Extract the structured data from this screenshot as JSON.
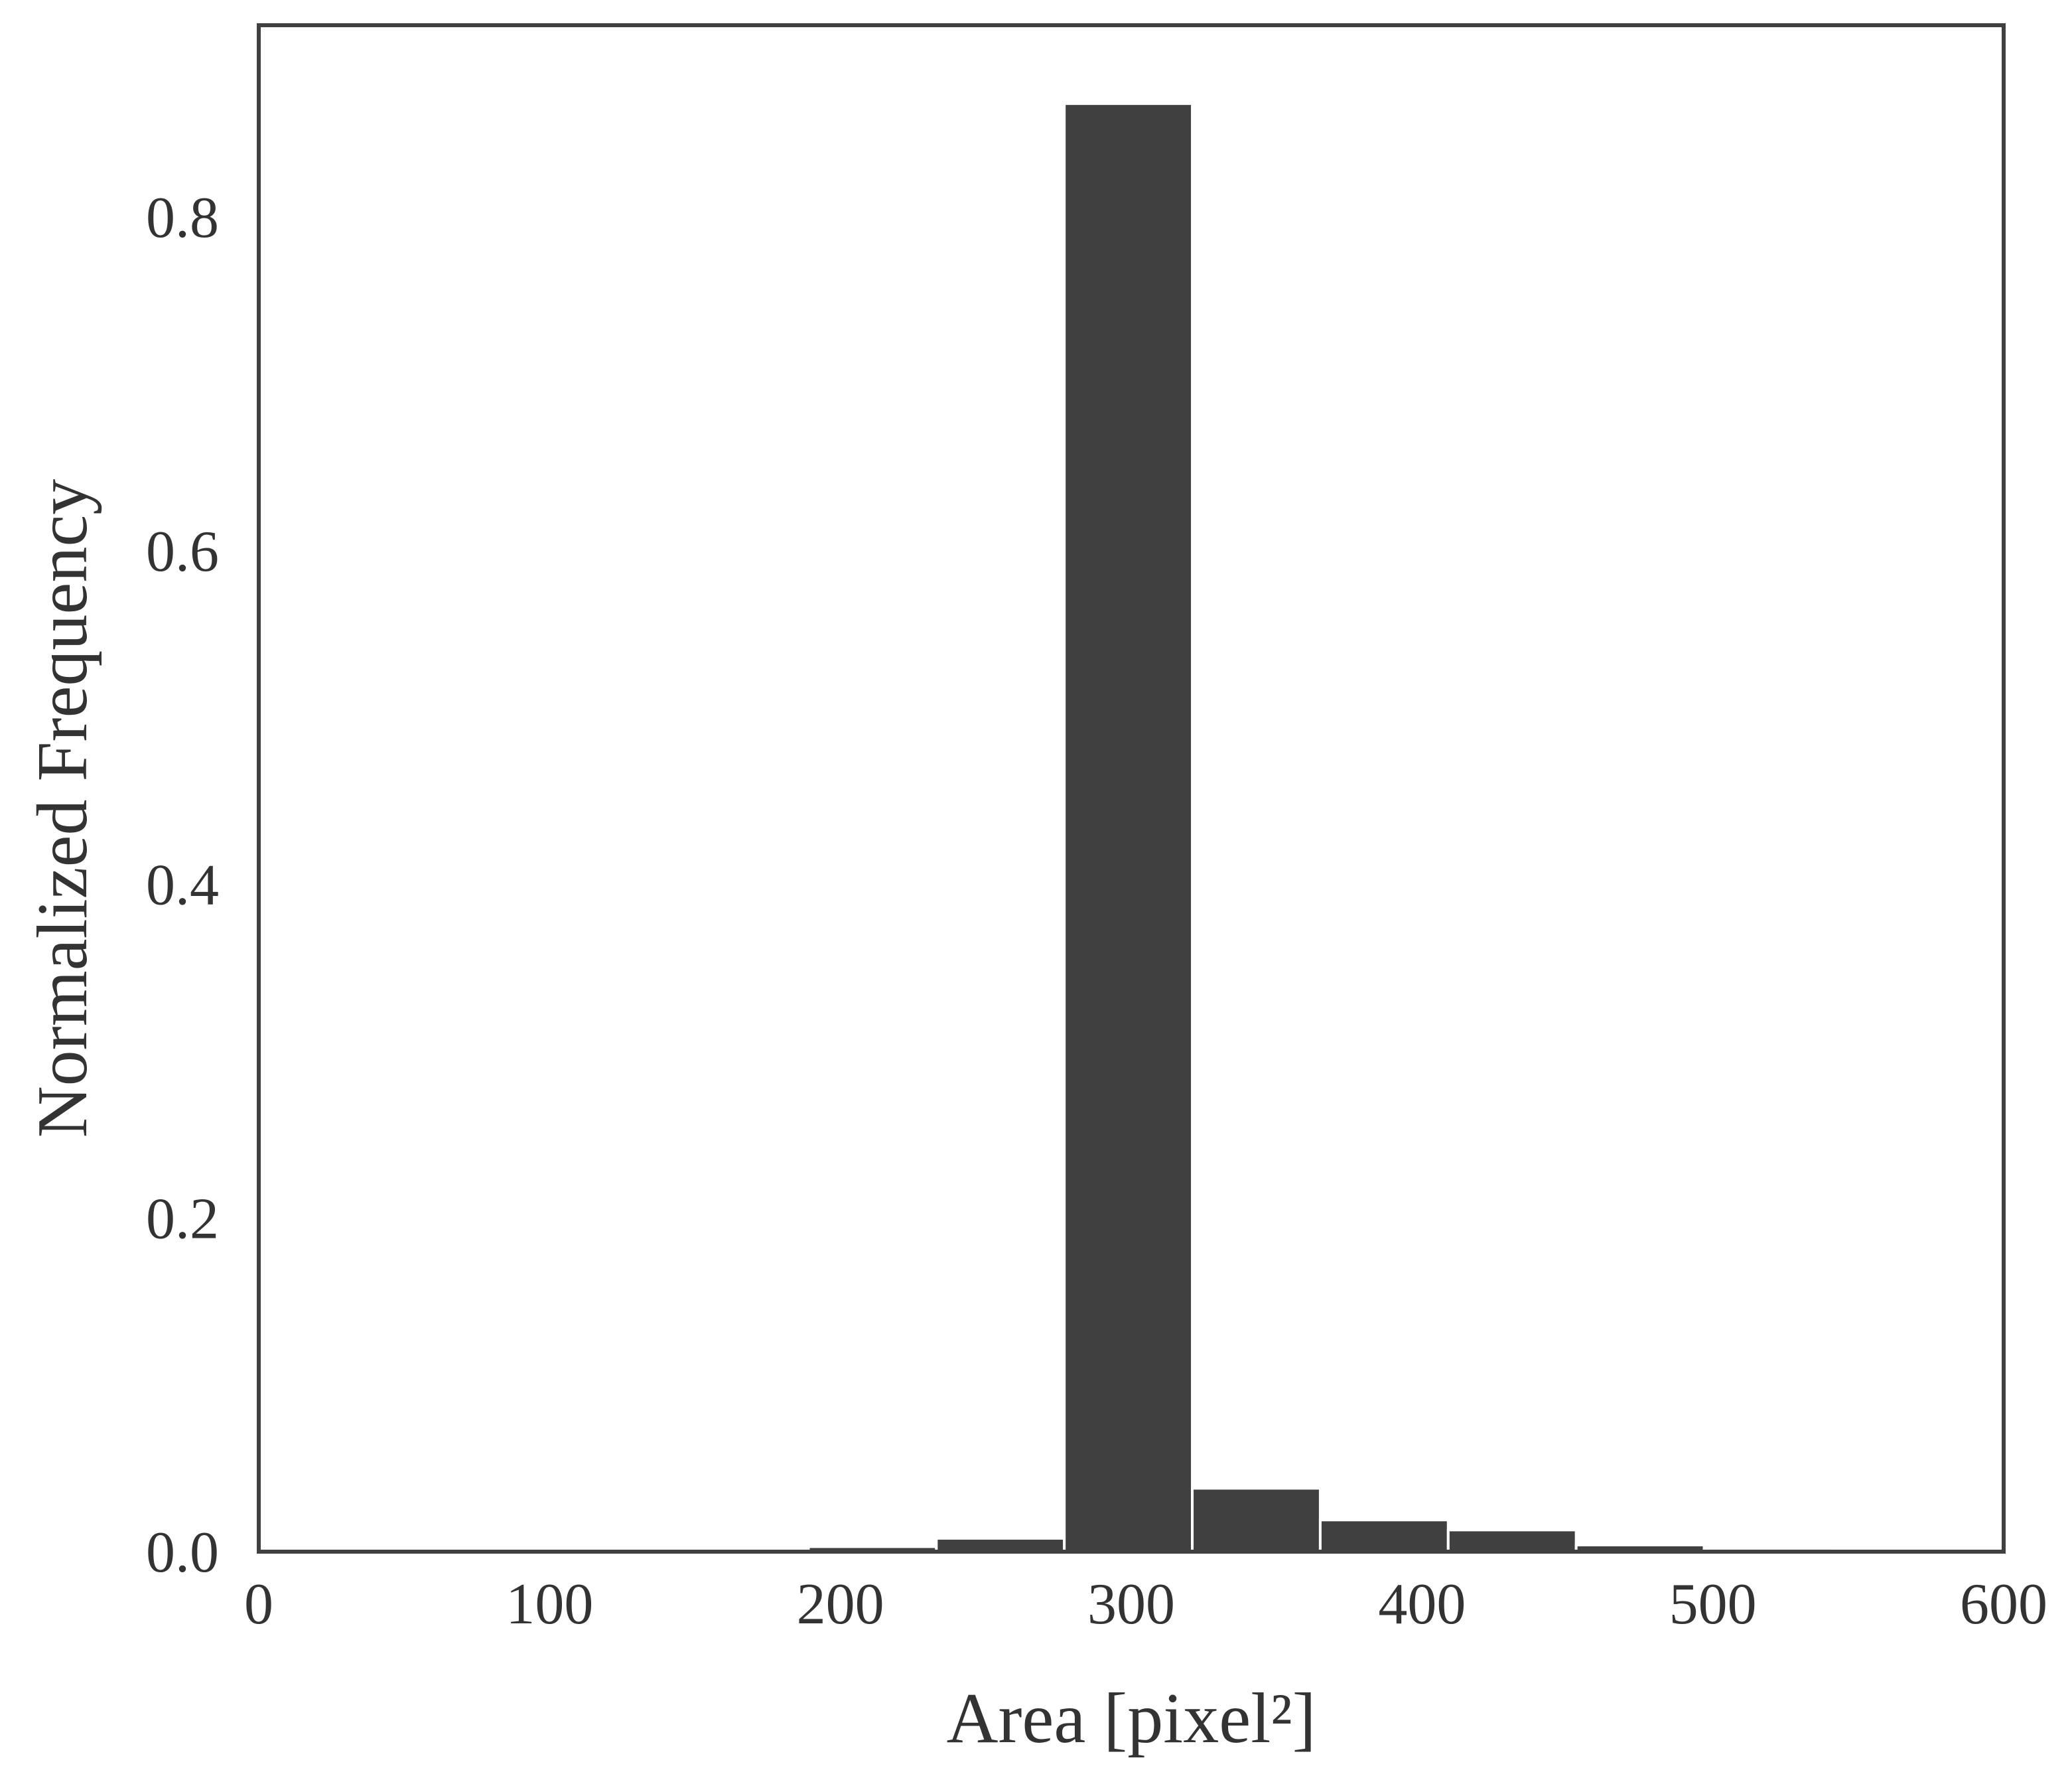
{
  "chart_data": {
    "type": "bar",
    "title": "",
    "xlabel": "Area [pixel²]",
    "ylabel": "Normalized Frequency",
    "xlim": [
      0,
      600
    ],
    "ylim": [
      0,
      0.915
    ],
    "x_ticks": [
      {
        "value": 0,
        "label": "0"
      },
      {
        "value": 100,
        "label": "100"
      },
      {
        "value": 200,
        "label": "200"
      },
      {
        "value": 300,
        "label": "300"
      },
      {
        "value": 400,
        "label": "400"
      },
      {
        "value": 500,
        "label": "500"
      },
      {
        "value": 600,
        "label": "600"
      }
    ],
    "y_ticks": [
      {
        "value": 0.0,
        "label": "0.0"
      },
      {
        "value": 0.2,
        "label": "0.2"
      },
      {
        "value": 0.4,
        "label": "0.4"
      },
      {
        "value": 0.6,
        "label": "0.6"
      },
      {
        "value": 0.8,
        "label": "0.8"
      }
    ],
    "bins": [
      {
        "x0": 145,
        "x1": 189,
        "value": 0.001
      },
      {
        "x0": 189,
        "x1": 233,
        "value": 0.003
      },
      {
        "x0": 233,
        "x1": 277,
        "value": 0.008
      },
      {
        "x0": 277,
        "x1": 321,
        "value": 0.868
      },
      {
        "x0": 321,
        "x1": 365,
        "value": 0.038
      },
      {
        "x0": 365,
        "x1": 409,
        "value": 0.019
      },
      {
        "x0": 409,
        "x1": 453,
        "value": 0.013
      },
      {
        "x0": 453,
        "x1": 497,
        "value": 0.004
      },
      {
        "x0": 497,
        "x1": 541,
        "value": 0.002
      }
    ],
    "grid": false,
    "colors": {
      "bar": "#404040",
      "bar_edge": "#ffffff",
      "axes": "#404040",
      "text": "#333333",
      "background": "#ffffff"
    }
  }
}
